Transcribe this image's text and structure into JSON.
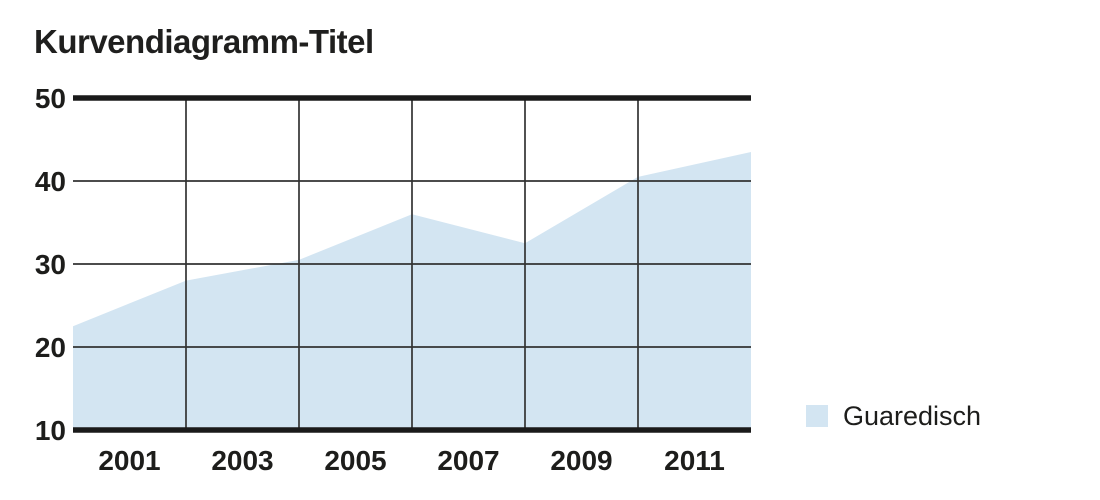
{
  "title": "Kurvendiagramm-Titel",
  "legend": {
    "label": "Guaredisch"
  },
  "colors": {
    "area": "#d3e5f2",
    "grid_line": "#333333",
    "axis_line": "#1a1a1a",
    "text": "#1d1d1b"
  },
  "chart_data": {
    "type": "area",
    "title": "Kurvendiagramm-Titel",
    "x": [
      2000,
      2002,
      2004,
      2006,
      2008,
      2010,
      2012
    ],
    "series": [
      {
        "name": "Guaredisch",
        "values": [
          22.5,
          28,
          30.5,
          36,
          32.5,
          40.5,
          43.5
        ]
      }
    ],
    "x_tick_labels": [
      "2001",
      "2003",
      "2005",
      "2007",
      "2009",
      "2011"
    ],
    "y_ticks": [
      50,
      40,
      30,
      20,
      10
    ],
    "grid_x_years": [
      2002,
      2004,
      2006,
      2008,
      2010
    ],
    "grid_y_values": [
      40,
      30,
      20
    ],
    "axis_line_values": [
      50,
      10
    ],
    "xlim": [
      2000,
      2012
    ],
    "ylim": [
      10,
      50
    ],
    "grid": true,
    "legend_position": "bottom-right"
  }
}
